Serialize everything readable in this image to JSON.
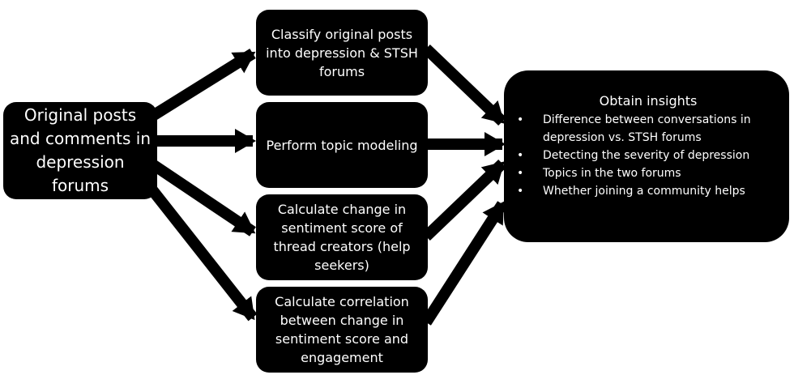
{
  "source": {
    "label": "Original posts and comments in depression forums"
  },
  "steps": [
    {
      "label": "Classify original posts into depression & STSH forums"
    },
    {
      "label": "Perform topic modeling"
    },
    {
      "label": "Calculate change in sentiment score of thread creators (help seekers)"
    },
    {
      "label": "Calculate correlation between change in sentiment score and engagement"
    }
  ],
  "outcome": {
    "title": "Obtain insights",
    "bullets": [
      "Difference between conversations in depression vs. STSH forums",
      "Detecting the severity of depression",
      "Topics in the two forums",
      "Whether joining a community helps"
    ]
  },
  "colors": {
    "box": "#000000",
    "text": "#ffffff",
    "arrow": "#000000",
    "background": "#ffffff"
  }
}
